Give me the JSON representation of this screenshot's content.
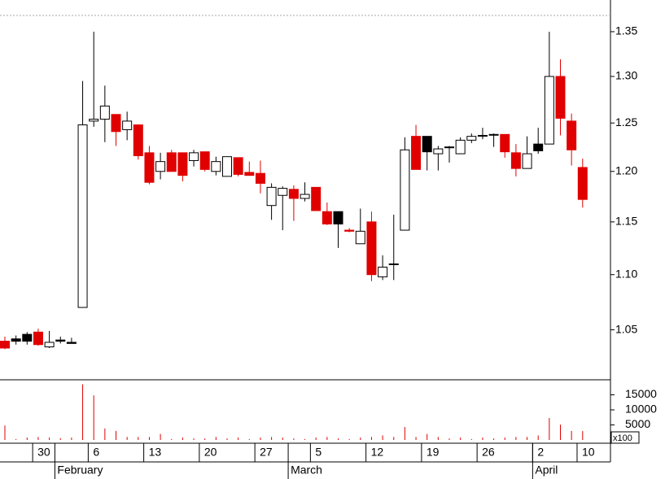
{
  "chart_data": {
    "type": "candlestick",
    "log_scale": true,
    "ylim": [
      1.0067,
      1.3686
    ],
    "yticks": [
      1.05,
      {
        "value": 1.1,
        "label": "1.10"
      },
      1.15,
      {
        "value": 1.2,
        "label": "1.20"
      },
      1.25,
      {
        "value": 1.3,
        "label": "1.30"
      },
      1.35
    ],
    "top_line": "dashed",
    "categories": [
      null,
      null,
      null,
      "30",
      null,
      null,
      null,
      null,
      "6",
      null,
      null,
      null,
      null,
      "13",
      null,
      null,
      null,
      null,
      "20",
      null,
      null,
      null,
      null,
      "27",
      null,
      null,
      null,
      null,
      "5",
      null,
      null,
      null,
      null,
      "12",
      null,
      null,
      null,
      null,
      "19",
      null,
      null,
      null,
      null,
      "26",
      null,
      null,
      null,
      null,
      "2",
      null,
      null,
      null,
      "10"
    ],
    "months": [
      {
        "value": 5,
        "label": "February"
      },
      {
        "value": 26,
        "label": "March"
      },
      {
        "value": 48,
        "label": "April"
      }
    ],
    "open": [
      1.04,
      1.04,
      1.04,
      1.048,
      1.035,
      1.04,
      1.038,
      1.07,
      1.252,
      1.254,
      1.259,
      1.243,
      1.248,
      1.219,
      1.2,
      1.219,
      1.219,
      1.211,
      1.22,
      1.2,
      1.195,
      1.214,
      1.199,
      1.198,
      1.166,
      1.176,
      1.182,
      1.173,
      1.184,
      1.16,
      1.16,
      1.142,
      1.129,
      1.15,
      1.098,
      1.11,
      1.142,
      1.236,
      1.236,
      1.218,
      1.225,
      1.218,
      1.232,
      1.237,
      1.238,
      1.238,
      1.219,
      1.203,
      1.228,
      1.228,
      1.3,
      1.252,
      1.204
    ],
    "high": [
      1.044,
      1.045,
      1.048,
      1.051,
      1.049,
      1.044,
      1.043,
      1.295,
      1.35,
      1.29,
      1.259,
      1.262,
      1.248,
      1.226,
      1.219,
      1.222,
      1.219,
      1.222,
      1.22,
      1.215,
      1.215,
      1.214,
      1.21,
      1.211,
      1.188,
      1.185,
      1.186,
      1.189,
      1.184,
      1.169,
      1.16,
      1.144,
      1.163,
      1.16,
      1.118,
      1.157,
      1.235,
      1.248,
      1.236,
      1.226,
      1.226,
      1.235,
      1.239,
      1.245,
      1.239,
      1.238,
      1.228,
      1.236,
      1.245,
      1.35,
      1.319,
      1.26,
      1.213
    ],
    "low": [
      1.033,
      1.037,
      1.037,
      1.036,
      1.034,
      1.038,
      1.038,
      1.07,
      1.246,
      1.23,
      1.226,
      1.232,
      1.212,
      1.187,
      1.192,
      1.2,
      1.19,
      1.205,
      1.2,
      1.196,
      1.195,
      1.195,
      1.196,
      1.178,
      1.152,
      1.142,
      1.151,
      1.17,
      1.161,
      1.147,
      1.125,
      1.14,
      1.129,
      1.094,
      1.095,
      1.095,
      1.142,
      1.202,
      1.201,
      1.201,
      1.209,
      1.218,
      1.229,
      1.233,
      1.225,
      1.214,
      1.195,
      1.203,
      1.218,
      1.228,
      1.237,
      1.206,
      1.164
    ],
    "close": [
      1.034,
      1.042,
      1.046,
      1.037,
      1.039,
      1.041,
      1.039,
      1.248,
      1.254,
      1.268,
      1.241,
      1.252,
      1.216,
      1.189,
      1.21,
      1.2,
      1.196,
      1.219,
      1.202,
      1.21,
      1.215,
      1.197,
      1.196,
      1.188,
      1.184,
      1.183,
      1.173,
      1.177,
      1.161,
      1.148,
      1.148,
      1.141,
      1.141,
      1.1,
      1.107,
      1.11,
      1.222,
      1.202,
      1.22,
      1.223,
      1.225,
      1.232,
      1.236,
      1.237,
      1.238,
      1.22,
      1.203,
      1.218,
      1.221,
      1.3,
      1.255,
      1.222,
      1.172
    ],
    "colors": [
      "#e00000",
      "#000000",
      "#000000",
      "#e00000",
      "#ffffff",
      "#000000",
      "#000000",
      "#ffffff",
      "#ffffff",
      "#ffffff",
      "#e00000",
      "#ffffff",
      "#e00000",
      "#e00000",
      "#ffffff",
      "#e00000",
      "#e00000",
      "#ffffff",
      "#e00000",
      "#ffffff",
      "#ffffff",
      "#e00000",
      "#e00000",
      "#e00000",
      "#ffffff",
      "#ffffff",
      "#e00000",
      "#ffffff",
      "#e00000",
      "#e00000",
      "#000000",
      "#e00000",
      "#ffffff",
      "#e00000",
      "#ffffff",
      "#000000",
      "#ffffff",
      "#e00000",
      "#000000",
      "#ffffff",
      "#000000",
      "#ffffff",
      "#ffffff",
      "#000000",
      "#000000",
      "#e00000",
      "#e00000",
      "#ffffff",
      "#000000",
      "#ffffff",
      "#e00000",
      "#e00000",
      "#e00000"
    ],
    "volume": {
      "values": [
        4800,
        300,
        800,
        1000,
        800,
        600,
        800,
        18500,
        14800,
        3800,
        3000,
        1000,
        1000,
        1000,
        2000,
        300,
        800,
        500,
        500,
        1000,
        500,
        800,
        300,
        800,
        1000,
        800,
        500,
        300,
        800,
        1000,
        500,
        300,
        800,
        1000,
        1500,
        1000,
        4300,
        1000,
        2000,
        1000,
        500,
        800,
        300,
        800,
        500,
        800,
        1000,
        1000,
        1500,
        7300,
        5100,
        3000,
        3000
      ],
      "ylim": [
        0,
        20000
      ],
      "yticks": [
        5000,
        10000,
        15000
      ],
      "unit_label": "x100",
      "color": "#e00000"
    }
  }
}
